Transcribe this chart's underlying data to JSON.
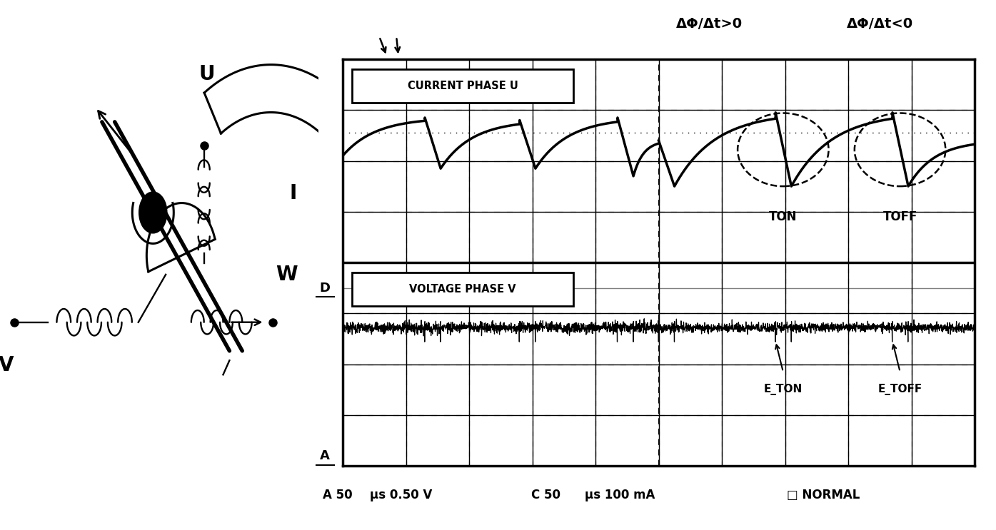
{
  "bg_color": "#ffffff",
  "osc": {
    "label_top": "CURRENT PHASE U",
    "label_bottom": "VOLTAGE PHASE V",
    "label_D": "D",
    "label_A": "A",
    "annotation_left": "ΔΦ/Δt>0",
    "annotation_right": "ΔΦ/Δt<0",
    "label_ton": "TON",
    "label_toff": "TOFF",
    "label_eton": "E_TON",
    "label_etoff": "E_TOFF",
    "bottom_A": "A 50",
    "bottom_us1": "μs 0.50 V",
    "bottom_C": "C 50",
    "bottom_us2": "μs 100 mA",
    "bottom_norm": "□NORMAL"
  },
  "motor": {
    "label_U": "U",
    "label_V": "V",
    "label_W": "W",
    "label_I": "I"
  }
}
